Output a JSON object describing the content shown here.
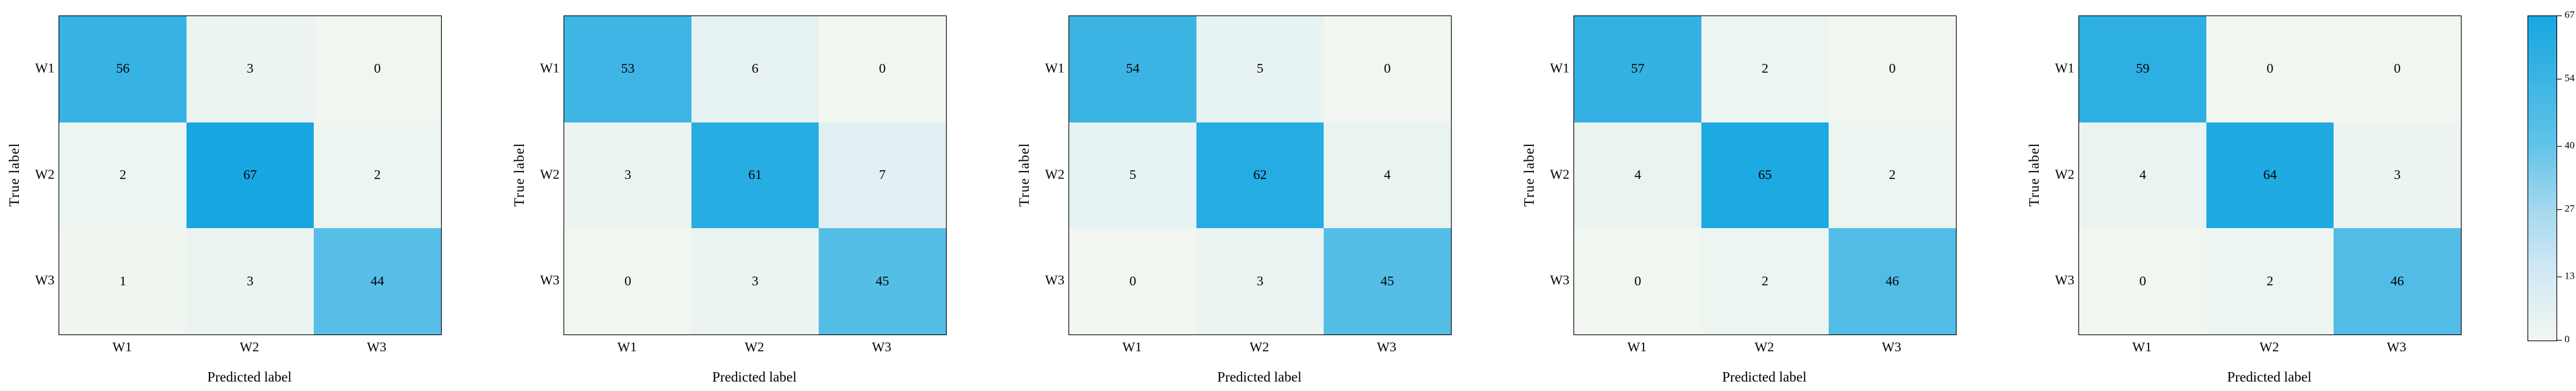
{
  "figure": {
    "background": "#ffffff",
    "text_color": "#000000",
    "border_color": "#000000"
  },
  "chart_data": [
    {
      "type": "heatmap",
      "name": "confusion-matrix-1",
      "x_categories": [
        "W1",
        "W2",
        "W3"
      ],
      "y_categories": [
        "W1",
        "W2",
        "W3"
      ],
      "xlabel": "Predicted label",
      "ylabel": "True label",
      "vmin": 0,
      "vmax": 67,
      "values": [
        [
          56,
          3,
          0
        ],
        [
          2,
          67,
          2
        ],
        [
          1,
          3,
          44
        ]
      ]
    },
    {
      "type": "heatmap",
      "name": "confusion-matrix-2",
      "x_categories": [
        "W1",
        "W2",
        "W3"
      ],
      "y_categories": [
        "W1",
        "W2",
        "W3"
      ],
      "xlabel": "Predicted label",
      "ylabel": "True label",
      "vmin": 0,
      "vmax": 67,
      "values": [
        [
          53,
          6,
          0
        ],
        [
          3,
          61,
          7
        ],
        [
          0,
          3,
          45
        ]
      ]
    },
    {
      "type": "heatmap",
      "name": "confusion-matrix-3",
      "x_categories": [
        "W1",
        "W2",
        "W3"
      ],
      "y_categories": [
        "W1",
        "W2",
        "W3"
      ],
      "xlabel": "Predicted label",
      "ylabel": "True label",
      "vmin": 0,
      "vmax": 67,
      "values": [
        [
          54,
          5,
          0
        ],
        [
          5,
          62,
          4
        ],
        [
          0,
          3,
          45
        ]
      ]
    },
    {
      "type": "heatmap",
      "name": "confusion-matrix-4",
      "x_categories": [
        "W1",
        "W2",
        "W3"
      ],
      "y_categories": [
        "W1",
        "W2",
        "W3"
      ],
      "xlabel": "Predicted label",
      "ylabel": "True label",
      "vmin": 0,
      "vmax": 67,
      "values": [
        [
          57,
          2,
          0
        ],
        [
          4,
          65,
          2
        ],
        [
          0,
          2,
          46
        ]
      ]
    },
    {
      "type": "heatmap",
      "name": "confusion-matrix-5",
      "x_categories": [
        "W1",
        "W2",
        "W3"
      ],
      "y_categories": [
        "W1",
        "W2",
        "W3"
      ],
      "xlabel": "Predicted label",
      "ylabel": "True label",
      "vmin": 0,
      "vmax": 67,
      "values": [
        [
          59,
          0,
          0
        ],
        [
          4,
          64,
          3
        ],
        [
          0,
          2,
          46
        ]
      ]
    }
  ],
  "colorbar": {
    "vmin": 0,
    "vmax": 67,
    "ticks": [
      67,
      54,
      40,
      27,
      13,
      0
    ],
    "tick_labels": [
      "67",
      "54",
      "40",
      "27",
      "13",
      "0"
    ],
    "colormap_stops": [
      [
        0,
        "#F1F7F0"
      ],
      [
        13,
        "#D6EAF5"
      ],
      [
        27,
        "#A5D8EE"
      ],
      [
        40,
        "#62C4E9"
      ],
      [
        54,
        "#3BB4E4"
      ],
      [
        67,
        "#18A7E1"
      ]
    ]
  }
}
